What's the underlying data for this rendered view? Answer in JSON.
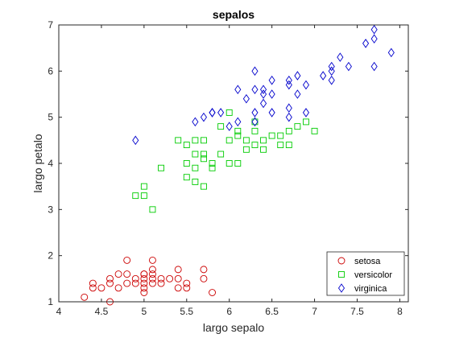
{
  "chart_data": {
    "type": "scatter",
    "title": "sepalos",
    "xlabel": "largo sepalo",
    "ylabel": "largo petalo",
    "xlim": [
      4,
      8.1
    ],
    "ylim": [
      1,
      7
    ],
    "xticks": [
      "4",
      "4.5",
      "5",
      "5.5",
      "6",
      "6.5",
      "7",
      "7.5",
      "8"
    ],
    "yticks": [
      "1",
      "2",
      "3",
      "4",
      "5",
      "6",
      "7"
    ],
    "grid": false,
    "legend_position": "bottom-right",
    "series": [
      {
        "name": "setosa",
        "marker": "circle",
        "color": "#cc0000",
        "x": [
          4.3,
          4.4,
          4.4,
          4.5,
          4.6,
          4.6,
          4.6,
          4.7,
          4.7,
          4.8,
          4.8,
          4.8,
          4.9,
          4.9,
          5.0,
          5.0,
          5.0,
          5.0,
          5.0,
          5.0,
          5.1,
          5.1,
          5.1,
          5.1,
          5.1,
          5.2,
          5.2,
          5.3,
          5.4,
          5.4,
          5.4,
          5.5,
          5.5,
          5.7,
          5.7,
          5.8
        ],
        "y": [
          1.1,
          1.3,
          1.4,
          1.3,
          1.0,
          1.4,
          1.5,
          1.3,
          1.6,
          1.4,
          1.6,
          1.9,
          1.4,
          1.5,
          1.2,
          1.3,
          1.4,
          1.5,
          1.6,
          1.6,
          1.4,
          1.5,
          1.6,
          1.7,
          1.9,
          1.4,
          1.5,
          1.5,
          1.3,
          1.5,
          1.7,
          1.3,
          1.4,
          1.5,
          1.7,
          1.2
        ]
      },
      {
        "name": "versicolor",
        "marker": "square",
        "color": "#00cc00",
        "x": [
          4.9,
          5.0,
          5.0,
          5.1,
          5.2,
          5.4,
          5.5,
          5.5,
          5.5,
          5.6,
          5.6,
          5.6,
          5.6,
          5.7,
          5.7,
          5.7,
          5.7,
          5.8,
          5.8,
          5.9,
          5.9,
          6.0,
          6.0,
          6.0,
          6.1,
          6.1,
          6.1,
          6.2,
          6.2,
          6.3,
          6.3,
          6.3,
          6.4,
          6.4,
          6.5,
          6.6,
          6.6,
          6.7,
          6.7,
          6.8,
          6.9,
          7.0
        ],
        "y": [
          3.3,
          3.3,
          3.5,
          3.0,
          3.9,
          4.5,
          3.7,
          4.0,
          4.4,
          3.6,
          3.9,
          4.2,
          4.5,
          3.5,
          4.1,
          4.2,
          4.5,
          3.9,
          4.0,
          4.2,
          4.8,
          4.0,
          4.5,
          5.1,
          4.0,
          4.6,
          4.7,
          4.3,
          4.5,
          4.4,
          4.7,
          4.9,
          4.3,
          4.5,
          4.6,
          4.4,
          4.6,
          4.4,
          4.7,
          4.8,
          4.9,
          4.7
        ]
      },
      {
        "name": "virginica",
        "marker": "diamond",
        "color": "#0000cc",
        "x": [
          4.9,
          5.6,
          5.7,
          5.8,
          5.8,
          5.9,
          6.0,
          6.1,
          6.1,
          6.2,
          6.3,
          6.3,
          6.3,
          6.3,
          6.4,
          6.4,
          6.4,
          6.5,
          6.5,
          6.5,
          6.7,
          6.7,
          6.7,
          6.7,
          6.8,
          6.8,
          6.9,
          6.9,
          7.1,
          7.2,
          7.2,
          7.2,
          7.3,
          7.4,
          7.6,
          7.7,
          7.7,
          7.7,
          7.9
        ],
        "y": [
          4.5,
          4.9,
          5.0,
          5.1,
          5.1,
          5.1,
          4.8,
          4.9,
          5.6,
          5.4,
          4.9,
          5.1,
          5.6,
          6.0,
          5.3,
          5.5,
          5.6,
          5.1,
          5.5,
          5.8,
          5.0,
          5.2,
          5.7,
          5.8,
          5.5,
          5.9,
          5.1,
          5.7,
          5.9,
          5.8,
          6.0,
          6.1,
          6.3,
          6.1,
          6.6,
          6.1,
          6.7,
          6.9,
          6.4
        ]
      }
    ]
  }
}
